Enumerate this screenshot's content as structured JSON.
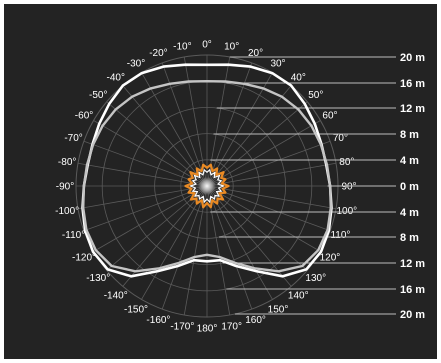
{
  "chart_data": {
    "type": "polar-line",
    "angle_unit": "degrees",
    "angle_ticks": [
      0,
      10,
      20,
      30,
      40,
      50,
      60,
      70,
      80,
      90,
      100,
      110,
      120,
      130,
      140,
      150,
      160,
      170,
      180,
      -170,
      -160,
      -150,
      -140,
      -130,
      -120,
      -110,
      -100,
      -90,
      -80,
      -70,
      -60,
      -50,
      -40,
      -30,
      -20,
      -10
    ],
    "angle_labels": [
      "0°",
      "10°",
      "20°",
      "30°",
      "40°",
      "50°",
      "60°",
      "70°",
      "80°",
      "90°",
      "100°",
      "110°",
      "120°",
      "130°",
      "140°",
      "150°",
      "160°",
      "170°",
      "180°",
      "-170°",
      "-160°",
      "-150°",
      "-140°",
      "-130°",
      "-120°",
      "-110°",
      "-100°",
      "-90°",
      "-80°",
      "-70°",
      "-60°",
      "-50°",
      "-40°",
      "-30°",
      "-20°",
      "-10°"
    ],
    "radial_scale_labels": [
      "20 m",
      "16 m",
      "12 m",
      "8 m",
      "4 m",
      "0 m",
      "4 m",
      "8 m",
      "12 m",
      "16 m",
      "20 m"
    ],
    "r_max": 20,
    "series": [
      {
        "color": "#ffffff",
        "angles": [
          0,
          10,
          20,
          30,
          40,
          50,
          60,
          70,
          80,
          90,
          100,
          110,
          120,
          130,
          140,
          150,
          160,
          170,
          180,
          -170,
          -160,
          -150,
          -140,
          -130,
          -120,
          -110,
          -100,
          -90,
          -80,
          -70,
          -60,
          -50,
          -40,
          -30,
          -20,
          -10
        ],
        "values": [
          18.5,
          18.8,
          19.4,
          19.9,
          20.0,
          19.5,
          19.0,
          18.6,
          18.5,
          18.8,
          19.3,
          19.8,
          20.1,
          19.8,
          18.0,
          15.0,
          13.0,
          11.5,
          11.5,
          11.5,
          13.0,
          15.0,
          18.0,
          19.8,
          20.1,
          19.8,
          19.3,
          18.8,
          18.5,
          18.6,
          19.0,
          19.5,
          20.0,
          19.9,
          19.4,
          18.8
        ]
      },
      {
        "color": "#c4c4c4",
        "angles": [
          0,
          10,
          20,
          30,
          40,
          50,
          60,
          70,
          80,
          90,
          100,
          110,
          120,
          130,
          140,
          150,
          160,
          170,
          180,
          -170,
          -160,
          -150,
          -140,
          -130,
          -120,
          -110,
          -100,
          -90,
          -80,
          -70,
          -60,
          -50,
          -40,
          -30,
          -20,
          -10
        ],
        "values": [
          16.0,
          16.2,
          16.6,
          17.2,
          17.8,
          18.2,
          18.4,
          18.5,
          18.6,
          18.8,
          19.2,
          19.6,
          19.6,
          19.0,
          17.0,
          14.5,
          12.5,
          11.0,
          10.5,
          11.0,
          12.5,
          14.5,
          17.0,
          19.0,
          19.6,
          19.6,
          19.2,
          18.8,
          18.6,
          18.5,
          18.4,
          18.2,
          17.8,
          17.2,
          16.6,
          16.2
        ]
      },
      {
        "color": "#e98a24",
        "angles": [
          0,
          10,
          20,
          30,
          40,
          50,
          60,
          70,
          80,
          90,
          100,
          110,
          120,
          130,
          140,
          150,
          160,
          170,
          180,
          -170,
          -160,
          -150,
          -140,
          -130,
          -120,
          -110,
          -100,
          -90,
          -80,
          -70,
          -60,
          -50,
          -40,
          -30,
          -20,
          -10
        ],
        "values": [
          2.8,
          3.3,
          2.4,
          3.1,
          2.2,
          3.3,
          2.5,
          3.0,
          2.3,
          3.3,
          2.4,
          3.0,
          2.2,
          3.2,
          2.5,
          3.1,
          2.3,
          3.3,
          2.6,
          3.3,
          2.3,
          3.1,
          2.5,
          3.2,
          2.2,
          3.0,
          2.4,
          3.3,
          2.3,
          3.0,
          2.5,
          3.3,
          2.2,
          3.1,
          2.4,
          3.3
        ]
      },
      {
        "color": "#ffffff",
        "angles": [
          0,
          10,
          20,
          30,
          40,
          50,
          60,
          70,
          80,
          90,
          100,
          110,
          120,
          130,
          140,
          150,
          160,
          170,
          180,
          -170,
          -160,
          -150,
          -140,
          -130,
          -120,
          -110,
          -100,
          -90,
          -80,
          -70,
          -60,
          -50,
          -40,
          -30,
          -20,
          -10
        ],
        "values": [
          2.1,
          2.5,
          1.8,
          2.4,
          1.7,
          2.5,
          1.9,
          2.3,
          1.7,
          2.5,
          1.8,
          2.3,
          1.7,
          2.4,
          1.9,
          2.3,
          1.7,
          2.5,
          2.0,
          2.5,
          1.7,
          2.3,
          1.9,
          2.4,
          1.7,
          2.3,
          1.8,
          2.5,
          1.7,
          2.3,
          1.9,
          2.5,
          1.7,
          2.4,
          1.8,
          2.5
        ]
      }
    ]
  }
}
